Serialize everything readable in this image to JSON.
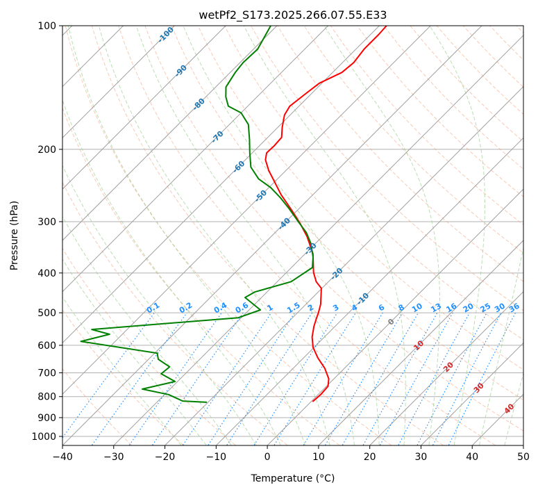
{
  "chart_data": {
    "type": "line",
    "subtype": "skew-t log-p",
    "title": "wetPf2_S173.2025.266.07.55.E33",
    "xlabel": "Temperature (°C)",
    "ylabel": "Pressure (hPa)",
    "xlim": [
      -40,
      50
    ],
    "ylim": [
      1050,
      100
    ],
    "xticks": [
      -40,
      -30,
      -20,
      -10,
      0,
      10,
      20,
      30,
      40,
      50
    ],
    "yticks": [
      100,
      200,
      300,
      400,
      500,
      600,
      700,
      800,
      900,
      1000
    ],
    "grid": true,
    "series": [
      {
        "name": "temperature",
        "color": "#ff0000",
        "pressure": [
          823,
          791,
          755,
          724,
          683,
          644,
          607,
          573,
          540,
          516,
          500,
          477,
          436,
          420,
          399,
          359,
          326,
          303,
          281,
          258,
          240,
          225,
          212,
          204,
          196,
          187,
          177,
          165,
          157,
          146,
          138,
          130,
          123,
          114,
          105,
          100
        ],
        "temp": [
          0.3,
          0.5,
          0.3,
          -1.0,
          -3.8,
          -7.2,
          -10.2,
          -12.4,
          -14.1,
          -15.2,
          -15.9,
          -17.1,
          -20.1,
          -22.4,
          -24.7,
          -28.5,
          -33.0,
          -36.9,
          -41.2,
          -46.2,
          -50.0,
          -53.4,
          -56.1,
          -57.2,
          -57.1,
          -57.3,
          -59.1,
          -61.1,
          -61.8,
          -61.1,
          -60.5,
          -58.2,
          -57.8,
          -58.4,
          -58.4,
          -58.6
        ]
      },
      {
        "name": "dewpoint",
        "color": "#008000",
        "pressure": [
          826,
          820,
          791,
          767,
          735,
          704,
          677,
          649,
          627,
          587,
          564,
          549,
          514,
          492,
          459,
          445,
          420,
          388,
          366,
          339,
          319,
          301,
          279,
          263,
          248,
          236,
          221,
          204,
          189,
          174,
          163,
          157,
          149,
          141,
          130,
          123,
          114,
          100
        ],
        "temp": [
          -20.2,
          -25.2,
          -29.2,
          -35.4,
          -30.5,
          -34.7,
          -34.4,
          -38.1,
          -39.5,
          -56.7,
          -52.5,
          -56.9,
          -30.6,
          -27.8,
          -33.2,
          -32.4,
          -27.3,
          -25.9,
          -27.8,
          -30.9,
          -33.9,
          -37.4,
          -41.9,
          -45.6,
          -49.6,
          -53.7,
          -57.5,
          -60.5,
          -63.2,
          -66.3,
          -70.0,
          -73.8,
          -76.1,
          -78.0,
          -79.0,
          -79.4,
          -79.2,
          -81.2
        ]
      }
    ],
    "mixing_ratio_labels": [
      "0.1",
      "0.2",
      "0.4",
      "0.6",
      "1",
      "1.5",
      "2",
      "3",
      "4",
      "6",
      "8",
      "10",
      "13",
      "16",
      "20",
      "25",
      "30",
      "36"
    ],
    "isotherm_labels": [
      "-100",
      "-90",
      "-80",
      "-70",
      "-60",
      "-50",
      "-40",
      "-30",
      "-20",
      "-10",
      "0",
      "10",
      "20",
      "30",
      "40"
    ],
    "colors": {
      "isotherm": "#a0a0a0",
      "dry_adiabat": "#f4a582",
      "moist_adiabat": "#9ccf93",
      "mixing_ratio": "#1e90ff",
      "label_cold": "#1f77b4",
      "label_zero": "#808080",
      "label_warm": "#d62728"
    }
  }
}
